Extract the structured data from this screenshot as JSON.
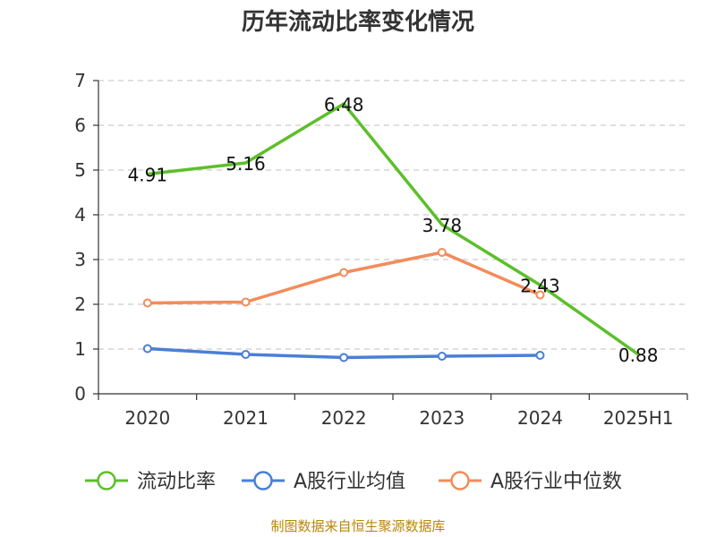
{
  "chart_data": {
    "type": "line",
    "title": "历年流动比率变化情况",
    "categories": [
      "2020",
      "2021",
      "2022",
      "2023",
      "2024",
      "2025H1"
    ],
    "ylim": [
      0,
      7
    ],
    "yticks": [
      "0",
      "1",
      "2",
      "3",
      "4",
      "5",
      "6",
      "7"
    ],
    "grid": true,
    "legend_position": "bottom",
    "series": [
      {
        "name": "流动比率",
        "color": "#5cbf2a",
        "values": [
          4.91,
          5.16,
          6.48,
          3.78,
          2.43,
          0.88
        ],
        "labels": [
          "4.91",
          "5.16",
          "6.48",
          "3.78",
          "2.43",
          "0.88"
        ],
        "show_markers": false
      },
      {
        "name": "A股行业均值",
        "color": "#4a7fd6",
        "values": [
          1.01,
          0.88,
          0.81,
          0.84,
          0.86,
          null
        ],
        "show_markers": true
      },
      {
        "name": "A股行业中位数",
        "color": "#f28c5a",
        "values": [
          2.03,
          2.05,
          2.71,
          3.16,
          2.21,
          null
        ],
        "show_markers": true
      }
    ],
    "source": "制图数据来自恒生聚源数据库"
  }
}
